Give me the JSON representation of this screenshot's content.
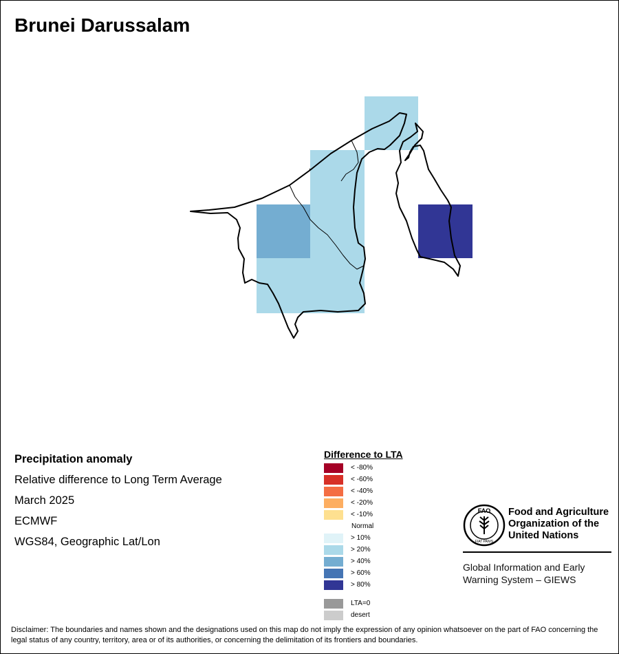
{
  "title": "Brunei Darussalam",
  "info": {
    "heading": "Precipitation anomaly",
    "subtitle": "Relative difference to Long Term Average",
    "period": "March 2025",
    "model": "ECMWF",
    "projection": "WGS84, Geographic Lat/Lon"
  },
  "legend": {
    "title": "Difference to LTA",
    "items": [
      {
        "label": "< -80%",
        "color": "#a50026"
      },
      {
        "label": "< -60%",
        "color": "#d73027"
      },
      {
        "label": "< -40%",
        "color": "#f46d43"
      },
      {
        "label": "< -20%",
        "color": "#fdae61"
      },
      {
        "label": "< -10%",
        "color": "#fee090"
      },
      {
        "label": "Normal",
        "color": "#ffffff"
      },
      {
        "label": "> 10%",
        "color": "#e0f3f8"
      },
      {
        "label": "> 20%",
        "color": "#abd9e9"
      },
      {
        "label": "> 40%",
        "color": "#74add1"
      },
      {
        "label": "> 60%",
        "color": "#4575b4"
      },
      {
        "label": "> 80%",
        "color": "#313695"
      }
    ],
    "extra": [
      {
        "label": "LTA=0",
        "color": "#999999"
      },
      {
        "label": "desert",
        "color": "#cccccc"
      }
    ]
  },
  "map": {
    "cells": [
      {
        "category": "> 20%",
        "color": "#abd9e9"
      },
      {
        "category": "> 20%",
        "color": "#abd9e9"
      },
      {
        "category": "> 20%",
        "color": "#abd9e9"
      },
      {
        "category": "> 40%",
        "color": "#74add1"
      },
      {
        "category": "> 20%",
        "color": "#abd9e9"
      },
      {
        "category": "> 20%",
        "color": "#abd9e9"
      },
      {
        "category": "> 20%",
        "color": "#abd9e9"
      },
      {
        "category": "> 20%",
        "color": "#abd9e9"
      },
      {
        "category": "> 80%",
        "color": "#313695"
      }
    ]
  },
  "org": {
    "line1": "Food and Agriculture",
    "line2": "Organization of the",
    "line3": "United Nations",
    "logo_text": "FAO",
    "logo_motto": "FIAT PANIS",
    "giews_line1": "Global Information and Early",
    "giews_line2": "Warning System – GIEWS"
  },
  "disclaimer": "Disclaimer: The boundaries and names shown and the designations used on this map do not imply the expression of any opinion whatsoever on the part of FAO concerning the legal status of any country, territory, area or of its authorities, or concerning the delimitation of its frontiers and boundaries."
}
